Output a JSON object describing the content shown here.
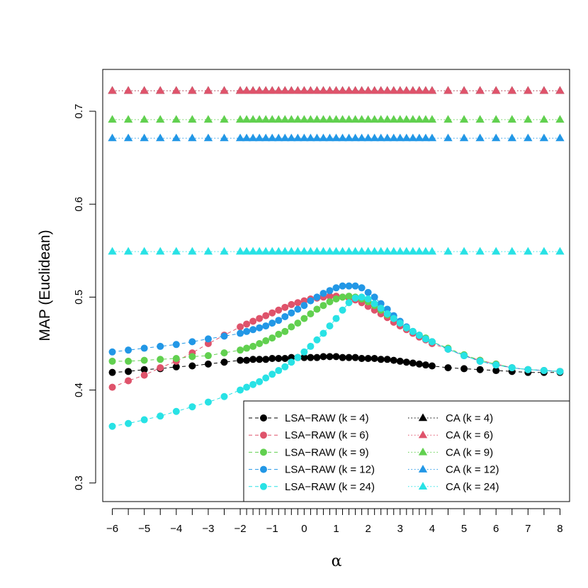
{
  "chart_data": {
    "type": "line",
    "xlabel": "α",
    "ylabel": "MAP (Euclidean)",
    "xlim": [
      -6.3,
      8.3
    ],
    "ylim": [
      0.28,
      0.745
    ],
    "x_ticks": [
      -6,
      -5,
      -4,
      -3,
      -2,
      -1,
      0,
      1,
      2,
      3,
      4,
      5,
      6,
      7,
      8
    ],
    "x_tick_labels": [
      "−6",
      "−5",
      "−4",
      "−3",
      "−2",
      "−1",
      "0",
      "1",
      "2",
      "3",
      "4",
      "5",
      "6",
      "7",
      "8"
    ],
    "y_ticks": [
      0.3,
      0.4,
      0.5,
      0.6,
      0.7
    ],
    "y_tick_labels": [
      "0.3",
      "0.4",
      "0.5",
      "0.6",
      "0.7"
    ],
    "x": [
      -6,
      -5.5,
      -5,
      -4.5,
      -4,
      -3.5,
      -3,
      -2.5,
      -2,
      -1.8,
      -1.6,
      -1.4,
      -1.2,
      -1,
      -0.8,
      -0.6,
      -0.4,
      -0.2,
      0,
      0.2,
      0.4,
      0.6,
      0.8,
      1,
      1.2,
      1.4,
      1.6,
      1.8,
      2,
      2.2,
      2.4,
      2.6,
      2.8,
      3,
      3.2,
      3.4,
      3.6,
      3.8,
      4,
      4.5,
      5,
      5.5,
      6,
      6.5,
      7,
      7.5,
      8
    ],
    "legend": {
      "position": "bottom-right"
    },
    "series": [
      {
        "name": "LSA−RAW (k = 4)",
        "color": "#000000",
        "marker": "circle",
        "line": "dashed",
        "values": [
          0.419,
          0.42,
          0.422,
          0.423,
          0.425,
          0.426,
          0.428,
          0.43,
          0.432,
          0.432,
          0.433,
          0.433,
          0.433,
          0.434,
          0.434,
          0.434,
          0.435,
          0.435,
          0.435,
          0.435,
          0.435,
          0.436,
          0.436,
          0.436,
          0.435,
          0.435,
          0.435,
          0.434,
          0.434,
          0.434,
          0.433,
          0.433,
          0.432,
          0.431,
          0.43,
          0.429,
          0.428,
          0.427,
          0.426,
          0.424,
          0.423,
          0.422,
          0.421,
          0.42,
          0.419,
          0.419,
          0.419
        ]
      },
      {
        "name": "LSA−RAW (k = 6)",
        "color": "#DF536B",
        "marker": "circle",
        "line": "dashed",
        "values": [
          0.403,
          0.41,
          0.416,
          0.424,
          0.431,
          0.44,
          0.45,
          0.459,
          0.468,
          0.471,
          0.474,
          0.477,
          0.48,
          0.483,
          0.486,
          0.489,
          0.492,
          0.494,
          0.496,
          0.498,
          0.499,
          0.5,
          0.501,
          0.501,
          0.5,
          0.499,
          0.497,
          0.494,
          0.49,
          0.486,
          0.482,
          0.478,
          0.473,
          0.469,
          0.465,
          0.461,
          0.457,
          0.454,
          0.45,
          0.444,
          0.437,
          0.432,
          0.428,
          0.424,
          0.422,
          0.421,
          0.42
        ]
      },
      {
        "name": "LSA−RAW (k = 9)",
        "color": "#61D04F",
        "marker": "circle",
        "line": "dashed",
        "values": [
          0.431,
          0.431,
          0.432,
          0.433,
          0.434,
          0.436,
          0.437,
          0.44,
          0.443,
          0.445,
          0.447,
          0.45,
          0.453,
          0.456,
          0.46,
          0.463,
          0.468,
          0.472,
          0.477,
          0.482,
          0.487,
          0.491,
          0.495,
          0.498,
          0.5,
          0.501,
          0.5,
          0.498,
          0.495,
          0.491,
          0.486,
          0.481,
          0.477,
          0.472,
          0.467,
          0.463,
          0.459,
          0.456,
          0.452,
          0.445,
          0.438,
          0.432,
          0.428,
          0.424,
          0.422,
          0.421,
          0.42
        ]
      },
      {
        "name": "LSA−RAW (k = 12)",
        "color": "#2297E6",
        "marker": "circle",
        "line": "dashed",
        "values": [
          0.441,
          0.443,
          0.445,
          0.447,
          0.449,
          0.452,
          0.455,
          0.458,
          0.461,
          0.463,
          0.465,
          0.467,
          0.469,
          0.472,
          0.475,
          0.479,
          0.483,
          0.487,
          0.491,
          0.496,
          0.5,
          0.504,
          0.507,
          0.51,
          0.512,
          0.512,
          0.512,
          0.51,
          0.505,
          0.5,
          0.493,
          0.487,
          0.48,
          0.474,
          0.468,
          0.463,
          0.459,
          0.455,
          0.452,
          0.444,
          0.437,
          0.431,
          0.427,
          0.424,
          0.422,
          0.421,
          0.42
        ]
      },
      {
        "name": "LSA−RAW (k = 24)",
        "color": "#28E2E5",
        "marker": "circle",
        "line": "dashed",
        "values": [
          0.361,
          0.364,
          0.368,
          0.372,
          0.377,
          0.382,
          0.387,
          0.393,
          0.4,
          0.403,
          0.406,
          0.409,
          0.413,
          0.417,
          0.421,
          0.425,
          0.43,
          0.435,
          0.441,
          0.447,
          0.454,
          0.461,
          0.469,
          0.477,
          0.486,
          0.494,
          0.499,
          0.5,
          0.498,
          0.493,
          0.488,
          0.482,
          0.477,
          0.472,
          0.467,
          0.463,
          0.459,
          0.455,
          0.452,
          0.444,
          0.437,
          0.431,
          0.427,
          0.424,
          0.422,
          0.421,
          0.42
        ]
      },
      {
        "name": "CA (k = 4)",
        "color": "#000000",
        "marker": "triangle",
        "line": "dotted",
        "constant": 0.722
      },
      {
        "name": "CA (k = 6)",
        "color": "#DF536B",
        "marker": "triangle",
        "line": "dotted",
        "constant": 0.722
      },
      {
        "name": "CA (k = 9)",
        "color": "#61D04F",
        "marker": "triangle",
        "line": "dotted",
        "constant": 0.691
      },
      {
        "name": "CA (k = 12)",
        "color": "#2297E6",
        "marker": "triangle",
        "line": "dotted",
        "constant": 0.671
      },
      {
        "name": "CA (k = 24)",
        "color": "#28E2E5",
        "marker": "triangle",
        "line": "dotted",
        "constant": 0.549
      }
    ]
  }
}
